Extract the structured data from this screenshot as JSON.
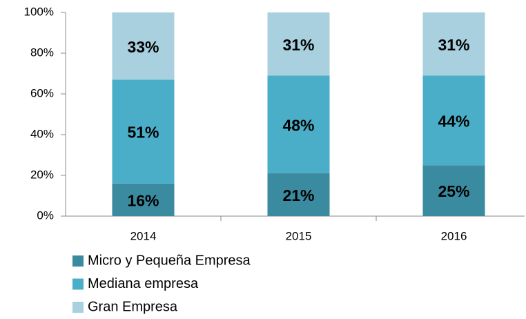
{
  "chart_data": {
    "type": "stacked_bar",
    "categories": [
      "2014",
      "2015",
      "2016"
    ],
    "series": [
      {
        "name": "Micro y Pequeña Empresa",
        "color": "#3a8aa0",
        "values": [
          16,
          21,
          25
        ],
        "value_labels": [
          "16%",
          "21%",
          "25%"
        ]
      },
      {
        "name": "Mediana empresa",
        "color": "#4aaec8",
        "values": [
          51,
          48,
          44
        ],
        "value_labels": [
          "51%",
          "48%",
          "44%"
        ]
      },
      {
        "name": "Gran Empresa",
        "color": "#a8d0de",
        "values": [
          33,
          31,
          31
        ],
        "value_labels": [
          "33%",
          "31%",
          "31%"
        ]
      }
    ],
    "ylim": [
      0,
      100
    ],
    "yticks": [
      {
        "value": 0,
        "label": "0%"
      },
      {
        "value": 20,
        "label": "20%"
      },
      {
        "value": 40,
        "label": "40%"
      },
      {
        "value": 60,
        "label": "60%"
      },
      {
        "value": 80,
        "label": "80%"
      },
      {
        "value": 100,
        "label": "100%"
      }
    ],
    "legend": "bottom"
  }
}
